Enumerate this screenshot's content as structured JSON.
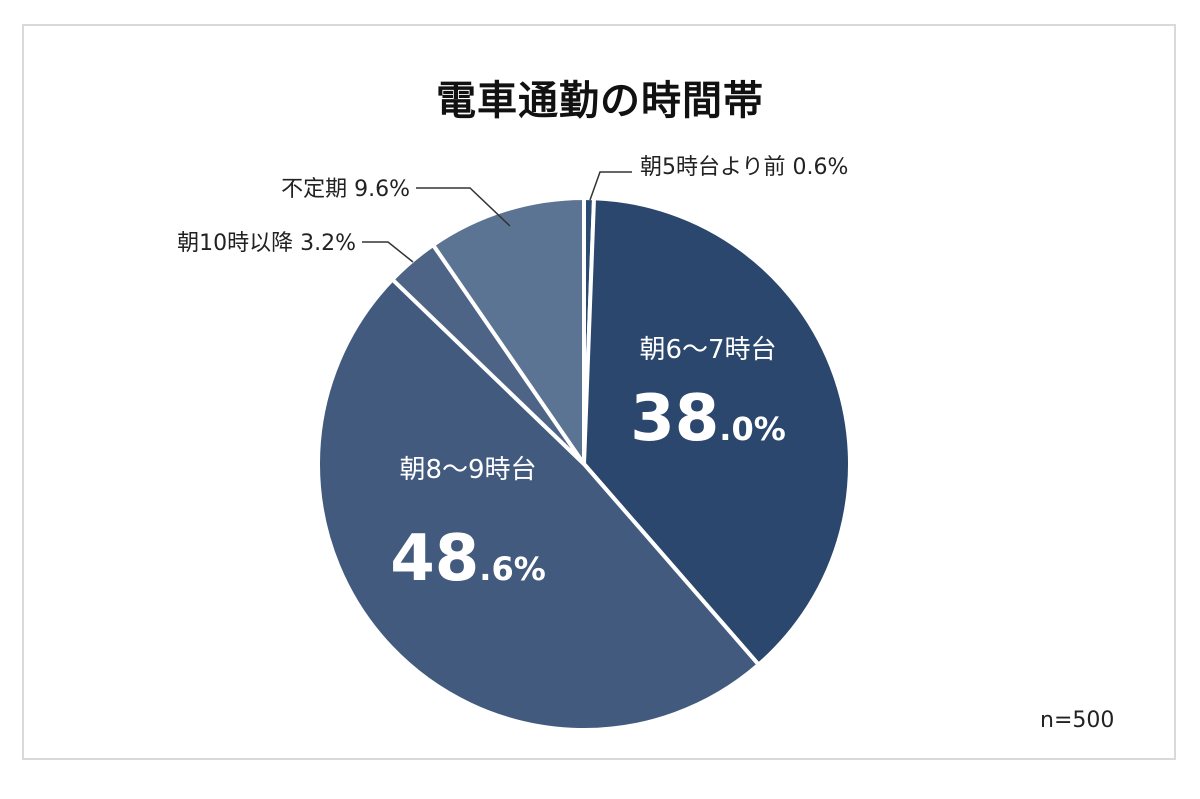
{
  "chart_data": {
    "type": "pie",
    "title": "電車通勤の時間帯",
    "note": "n=500",
    "unit": "%",
    "slices": [
      {
        "label": "朝5時台より前",
        "value": 0.6,
        "display": "0.6%",
        "color": "#2b4a72",
        "label_style": "outside"
      },
      {
        "label": "朝6～7時台",
        "value": 38.0,
        "display_int": "38",
        "display_dec": ".0%",
        "color": "#2b476d",
        "label_style": "inside"
      },
      {
        "label": "朝8～9時台",
        "value": 48.6,
        "display_int": "48",
        "display_dec": ".6%",
        "color": "#425a7e",
        "label_style": "inside"
      },
      {
        "label": "朝10時以降",
        "value": 3.2,
        "display": "3.2%",
        "color": "#4d6487",
        "label_style": "outside"
      },
      {
        "label": "不定期",
        "value": 9.6,
        "display": "9.6%",
        "color": "#5c7493",
        "label_style": "outside"
      }
    ]
  }
}
